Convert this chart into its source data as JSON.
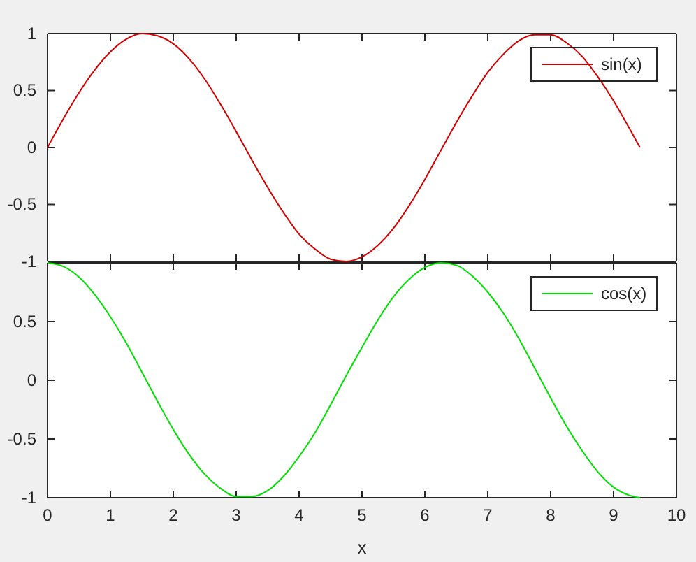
{
  "chart_data": [
    {
      "type": "line",
      "x": [
        0,
        0.25,
        0.5,
        0.75,
        1,
        1.25,
        1.5,
        1.75,
        2,
        2.25,
        2.5,
        2.75,
        3,
        3.25,
        3.5,
        3.75,
        4,
        4.25,
        4.5,
        4.75,
        5,
        5.25,
        5.5,
        5.75,
        6,
        6.25,
        6.5,
        6.75,
        7,
        7.25,
        7.5,
        7.75,
        8,
        8.25,
        8.5,
        8.75,
        9,
        9.25,
        9.42
      ],
      "series": [
        {
          "name": "sin(x)",
          "color": "#d40000",
          "values": [
            0,
            0.25,
            0.48,
            0.68,
            0.84,
            0.95,
            1.0,
            0.98,
            0.91,
            0.78,
            0.6,
            0.38,
            0.14,
            -0.11,
            -0.35,
            -0.57,
            -0.76,
            -0.89,
            -0.98,
            -1.0,
            -0.96,
            -0.86,
            -0.71,
            -0.51,
            -0.28,
            -0.03,
            0.22,
            0.45,
            0.66,
            0.82,
            0.94,
            0.99,
            0.99,
            0.92,
            0.8,
            0.62,
            0.41,
            0.17,
            0.0
          ]
        }
      ],
      "xlim": [
        0,
        10
      ],
      "xticks": [
        0,
        1,
        2,
        3,
        4,
        5,
        6,
        7,
        8,
        9,
        10
      ],
      "ylim": [
        -1,
        1
      ],
      "yticks": [
        -1,
        -0.5,
        0,
        0.5,
        1
      ],
      "tick_labels": "y",
      "legend": "top right",
      "marker": "none",
      "line_style": "solid",
      "grid": false
    },
    {
      "type": "line",
      "x": [
        0,
        0.25,
        0.5,
        0.75,
        1,
        1.25,
        1.5,
        1.75,
        2,
        2.25,
        2.5,
        2.75,
        3,
        3.25,
        3.5,
        3.75,
        4,
        4.25,
        4.5,
        4.75,
        5,
        5.25,
        5.5,
        5.75,
        6,
        6.25,
        6.5,
        6.75,
        7,
        7.25,
        7.5,
        7.75,
        8,
        8.25,
        8.5,
        8.75,
        9,
        9.25,
        9.42
      ],
      "series": [
        {
          "name": "cos(x)",
          "color": "#00e000",
          "values": [
            1,
            0.97,
            0.88,
            0.73,
            0.54,
            0.32,
            0.07,
            -0.18,
            -0.42,
            -0.63,
            -0.8,
            -0.92,
            -0.99,
            -0.99,
            -0.94,
            -0.82,
            -0.65,
            -0.45,
            -0.21,
            0.04,
            0.28,
            0.51,
            0.71,
            0.86,
            0.96,
            1.0,
            0.98,
            0.89,
            0.75,
            0.57,
            0.35,
            0.1,
            -0.15,
            -0.39,
            -0.6,
            -0.78,
            -0.91,
            -0.98,
            -1.0
          ]
        }
      ],
      "xlim": [
        0,
        10
      ],
      "xticks": [
        0,
        1,
        2,
        3,
        4,
        5,
        6,
        7,
        8,
        9,
        10
      ],
      "ylim": [
        -1,
        1
      ],
      "yticks": [
        -1,
        -0.5,
        0,
        0.5
      ],
      "xlabel": "x",
      "legend": "top right",
      "marker": "none",
      "line_style": "solid",
      "grid": false
    }
  ]
}
